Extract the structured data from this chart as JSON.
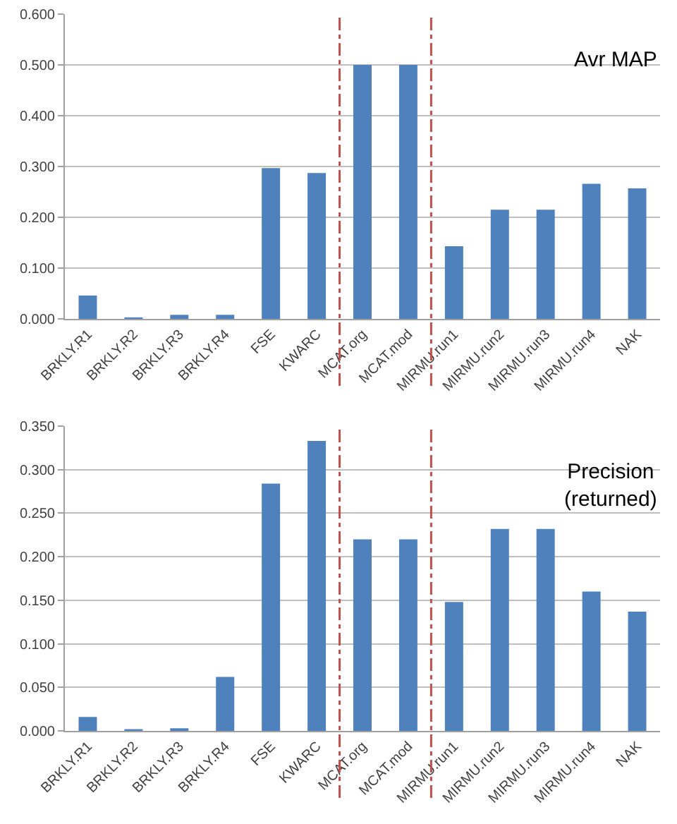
{
  "chart_data": [
    {
      "type": "bar",
      "title": "Avr MAP",
      "categories": [
        "BRKLY.R1",
        "BRKLY.R2",
        "BRKLY.R3",
        "BRKLY.R4",
        "FSE",
        "KWARC",
        "MCAT.org",
        "MCAT.mod",
        "MIRMU.run1",
        "MIRMU.run2",
        "MIRMU.run3",
        "MIRMU.run4",
        "NAK"
      ],
      "values": [
        0.046,
        0.003,
        0.008,
        0.008,
        0.297,
        0.287,
        0.5,
        0.5,
        0.143,
        0.215,
        0.215,
        0.266,
        0.257
      ],
      "color": "#4f81bd",
      "ylim": [
        0,
        0.6
      ],
      "yticks": [
        {
          "value": 0,
          "label": "0.000"
        },
        {
          "value": 0.1,
          "label": "0.100"
        },
        {
          "value": 0.2,
          "label": "0.200"
        },
        {
          "value": 0.3,
          "label": "0.300"
        },
        {
          "value": 0.4,
          "label": "0.400"
        },
        {
          "value": 0.5,
          "label": "0.500"
        },
        {
          "value": 0.6,
          "label": "0.600"
        }
      ],
      "grid": "y"
    },
    {
      "type": "bar",
      "title": "Precision\n(returned)",
      "categories": [
        "BRKLY.R1",
        "BRKLY.R2",
        "BRKLY.R3",
        "BRKLY.R4",
        "FSE",
        "KWARC",
        "MCAT.org",
        "MCAT.mod",
        "MIRMU.run1",
        "MIRMU.run2",
        "MIRMU.run3",
        "MIRMU.run4",
        "NAK"
      ],
      "values": [
        0.016,
        0.002,
        0.003,
        0.062,
        0.284,
        0.333,
        0.22,
        0.22,
        0.148,
        0.232,
        0.232,
        0.16,
        0.137
      ],
      "color": "#4f81bd",
      "ylim": [
        0,
        0.35
      ],
      "yticks": [
        {
          "value": 0,
          "label": "0.000"
        },
        {
          "value": 0.05,
          "label": "0.050"
        },
        {
          "value": 0.1,
          "label": "0.100"
        },
        {
          "value": 0.15,
          "label": "0.150"
        },
        {
          "value": 0.2,
          "label": "0.200"
        },
        {
          "value": 0.25,
          "label": "0.250"
        },
        {
          "value": 0.3,
          "label": "0.300"
        },
        {
          "value": 0.35,
          "label": "0.350"
        }
      ],
      "grid": "y"
    }
  ]
}
